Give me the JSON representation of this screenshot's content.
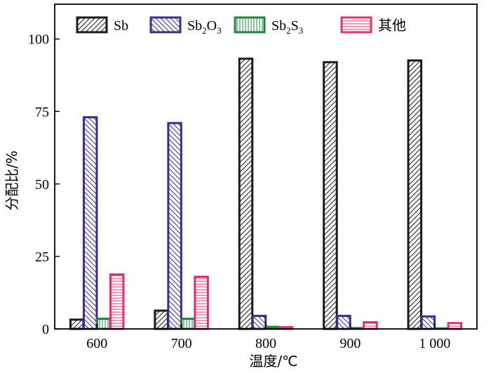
{
  "chart_data": {
    "type": "bar",
    "categories": [
      "600",
      "700",
      "800",
      "900",
      "1 000"
    ],
    "series": [
      {
        "name": "Sb",
        "legend": {
          "main": "Sb",
          "subs": []
        },
        "color": "#1a1a1a",
        "pattern": "diag-right",
        "values": [
          3.2,
          6.3,
          93.2,
          92.0,
          92.6
        ]
      },
      {
        "name": "Sb2O3",
        "legend": {
          "main": "Sb",
          "subs": [
            "2",
            "O",
            "3"
          ]
        },
        "color": "#3d2a8c",
        "pattern": "diag-left",
        "values": [
          73.0,
          71.0,
          4.5,
          4.5,
          4.3
        ]
      },
      {
        "name": "Sb2S3",
        "legend": {
          "main": "Sb",
          "subs": [
            "2",
            "S",
            "3"
          ]
        },
        "color": "#1a8a3a",
        "pattern": "vertical",
        "values": [
          3.5,
          3.5,
          0.7,
          0.3,
          0.2
        ]
      },
      {
        "name": "其他",
        "legend": {
          "main": "其他",
          "subs": []
        },
        "color": "#e0306f",
        "pattern": "horizontal",
        "values": [
          18.8,
          18.0,
          0.6,
          2.3,
          2.0
        ]
      }
    ],
    "xlabel": "温度/℃",
    "ylabel": "分配比/%",
    "ylim": [
      0,
      112
    ],
    "yticks": [
      0,
      25,
      50,
      75,
      100
    ],
    "legend_position": "top"
  }
}
